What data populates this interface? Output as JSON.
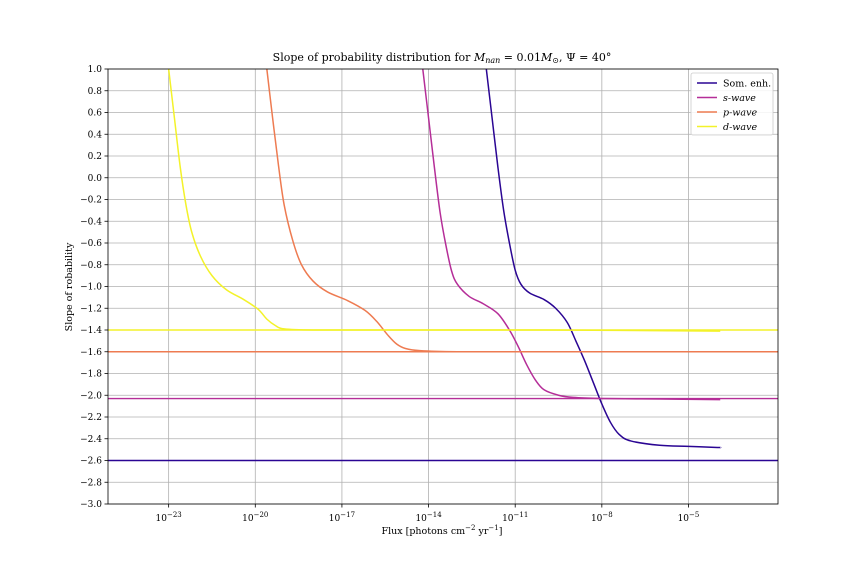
{
  "chart_data": {
    "type": "line",
    "title": "Slope of probability distribution for M_nan = 0.01M_⊙, Ψ = 40°",
    "title_parts": {
      "prefix": "Slope of probability distribution for ",
      "m_symbol": "M",
      "m_sub": "nan",
      "equals_mass": " = 0.01",
      "m_sun_symbol": "M",
      "m_sun_sub": "⊙",
      "separator": ", ",
      "psi": "Ψ = 40°"
    },
    "xlabel": "Flux [photons cm⁻² yr⁻¹]",
    "xlabel_parts": {
      "main": "Flux [photons cm",
      "exp1": "−2",
      "mid": " yr",
      "exp2": "−1",
      "end": "]"
    },
    "ylabel": "Slope of robability",
    "x_scale": "log",
    "xlim_log10": [
      -25.1,
      -1.9
    ],
    "ylim": [
      -3.0,
      1.0
    ],
    "x_ticks": [
      {
        "exp": -23,
        "base": "10",
        "sup": "−23"
      },
      {
        "exp": -20,
        "base": "10",
        "sup": "−20"
      },
      {
        "exp": -17,
        "base": "10",
        "sup": "−17"
      },
      {
        "exp": -14,
        "base": "10",
        "sup": "−14"
      },
      {
        "exp": -11,
        "base": "10",
        "sup": "−11"
      },
      {
        "exp": -8,
        "base": "10",
        "sup": "−8"
      },
      {
        "exp": -5,
        "base": "10",
        "sup": "−5"
      }
    ],
    "y_ticks": [
      {
        "value": 1.0,
        "label": "1.0"
      },
      {
        "value": 0.8,
        "label": "0.8"
      },
      {
        "value": 0.6,
        "label": "0.6"
      },
      {
        "value": 0.4,
        "label": "0.4"
      },
      {
        "value": 0.2,
        "label": "0.2"
      },
      {
        "value": 0.0,
        "label": "0.0"
      },
      {
        "value": -0.2,
        "label": "−0.2"
      },
      {
        "value": -0.4,
        "label": "−0.4"
      },
      {
        "value": -0.6,
        "label": "−0.6"
      },
      {
        "value": -0.8,
        "label": "−0.8"
      },
      {
        "value": -1.0,
        "label": "−1.0"
      },
      {
        "value": -1.2,
        "label": "−1.2"
      },
      {
        "value": -1.4,
        "label": "−1.4"
      },
      {
        "value": -1.6,
        "label": "−1.6"
      },
      {
        "value": -1.8,
        "label": "−1.8"
      },
      {
        "value": -2.0,
        "label": "−2.0"
      },
      {
        "value": -2.2,
        "label": "−2.2"
      },
      {
        "value": -2.4,
        "label": "−2.4"
      },
      {
        "value": -2.6,
        "label": "−2.6"
      },
      {
        "value": -2.8,
        "label": "−2.8"
      },
      {
        "value": -3.0,
        "label": "−3.0"
      }
    ],
    "grid": true,
    "legend_position": "top-right",
    "series": [
      {
        "name": "Som. enh.",
        "legend_style": "roman",
        "color": "#2a0593",
        "asymptote": -2.6,
        "points": [
          [
            -12.0,
            1.0
          ],
          [
            -11.8,
            0.55
          ],
          [
            -11.6,
            0.1
          ],
          [
            -11.4,
            -0.3
          ],
          [
            -11.2,
            -0.6
          ],
          [
            -11.0,
            -0.85
          ],
          [
            -10.8,
            -0.98
          ],
          [
            -10.5,
            -1.06
          ],
          [
            -10.0,
            -1.12
          ],
          [
            -9.6,
            -1.2
          ],
          [
            -9.2,
            -1.33
          ],
          [
            -8.9,
            -1.5
          ],
          [
            -8.6,
            -1.68
          ],
          [
            -8.3,
            -1.88
          ],
          [
            -8.0,
            -2.08
          ],
          [
            -7.7,
            -2.25
          ],
          [
            -7.4,
            -2.36
          ],
          [
            -7.0,
            -2.42
          ],
          [
            -6.0,
            -2.46
          ],
          [
            -5.0,
            -2.47
          ],
          [
            -4.0,
            -2.48
          ],
          [
            -3.9,
            -2.48
          ]
        ]
      },
      {
        "name": "s-wave",
        "legend_style": "italic",
        "color": "#b52e98",
        "asymptote": -2.03,
        "points": [
          [
            -14.2,
            1.0
          ],
          [
            -14.0,
            0.55
          ],
          [
            -13.8,
            0.1
          ],
          [
            -13.6,
            -0.32
          ],
          [
            -13.4,
            -0.62
          ],
          [
            -13.2,
            -0.86
          ],
          [
            -13.0,
            -0.98
          ],
          [
            -12.6,
            -1.09
          ],
          [
            -12.1,
            -1.16
          ],
          [
            -11.6,
            -1.25
          ],
          [
            -11.2,
            -1.4
          ],
          [
            -10.9,
            -1.55
          ],
          [
            -10.6,
            -1.72
          ],
          [
            -10.3,
            -1.86
          ],
          [
            -10.0,
            -1.95
          ],
          [
            -9.5,
            -2.0
          ],
          [
            -9.0,
            -2.02
          ],
          [
            -8.0,
            -2.03
          ],
          [
            -6.0,
            -2.035
          ],
          [
            -3.9,
            -2.04
          ]
        ]
      },
      {
        "name": "p-wave",
        "legend_style": "italic",
        "color": "#ee7b51",
        "asymptote": -1.6,
        "points": [
          [
            -19.6,
            1.0
          ],
          [
            -19.4,
            0.55
          ],
          [
            -19.2,
            0.12
          ],
          [
            -19.0,
            -0.25
          ],
          [
            -18.7,
            -0.58
          ],
          [
            -18.4,
            -0.8
          ],
          [
            -18.0,
            -0.95
          ],
          [
            -17.5,
            -1.05
          ],
          [
            -16.8,
            -1.13
          ],
          [
            -16.2,
            -1.22
          ],
          [
            -15.8,
            -1.32
          ],
          [
            -15.4,
            -1.45
          ],
          [
            -15.1,
            -1.53
          ],
          [
            -14.8,
            -1.57
          ],
          [
            -14.3,
            -1.59
          ],
          [
            -13.0,
            -1.6
          ],
          [
            -10.0,
            -1.6
          ],
          [
            -7.0,
            -1.6
          ],
          [
            -3.9,
            -1.6
          ]
        ]
      },
      {
        "name": "d-wave",
        "legend_style": "italic",
        "color": "#f3f22a",
        "asymptote": -1.4,
        "points": [
          [
            -23.0,
            1.0
          ],
          [
            -22.8,
            0.55
          ],
          [
            -22.6,
            0.1
          ],
          [
            -22.4,
            -0.25
          ],
          [
            -22.2,
            -0.5
          ],
          [
            -21.9,
            -0.72
          ],
          [
            -21.5,
            -0.9
          ],
          [
            -21.0,
            -1.03
          ],
          [
            -20.4,
            -1.12
          ],
          [
            -19.9,
            -1.21
          ],
          [
            -19.6,
            -1.3
          ],
          [
            -19.3,
            -1.36
          ],
          [
            -19.0,
            -1.39
          ],
          [
            -18.0,
            -1.4
          ],
          [
            -15.0,
            -1.4
          ],
          [
            -10.0,
            -1.4
          ],
          [
            -3.9,
            -1.41
          ]
        ]
      }
    ]
  }
}
